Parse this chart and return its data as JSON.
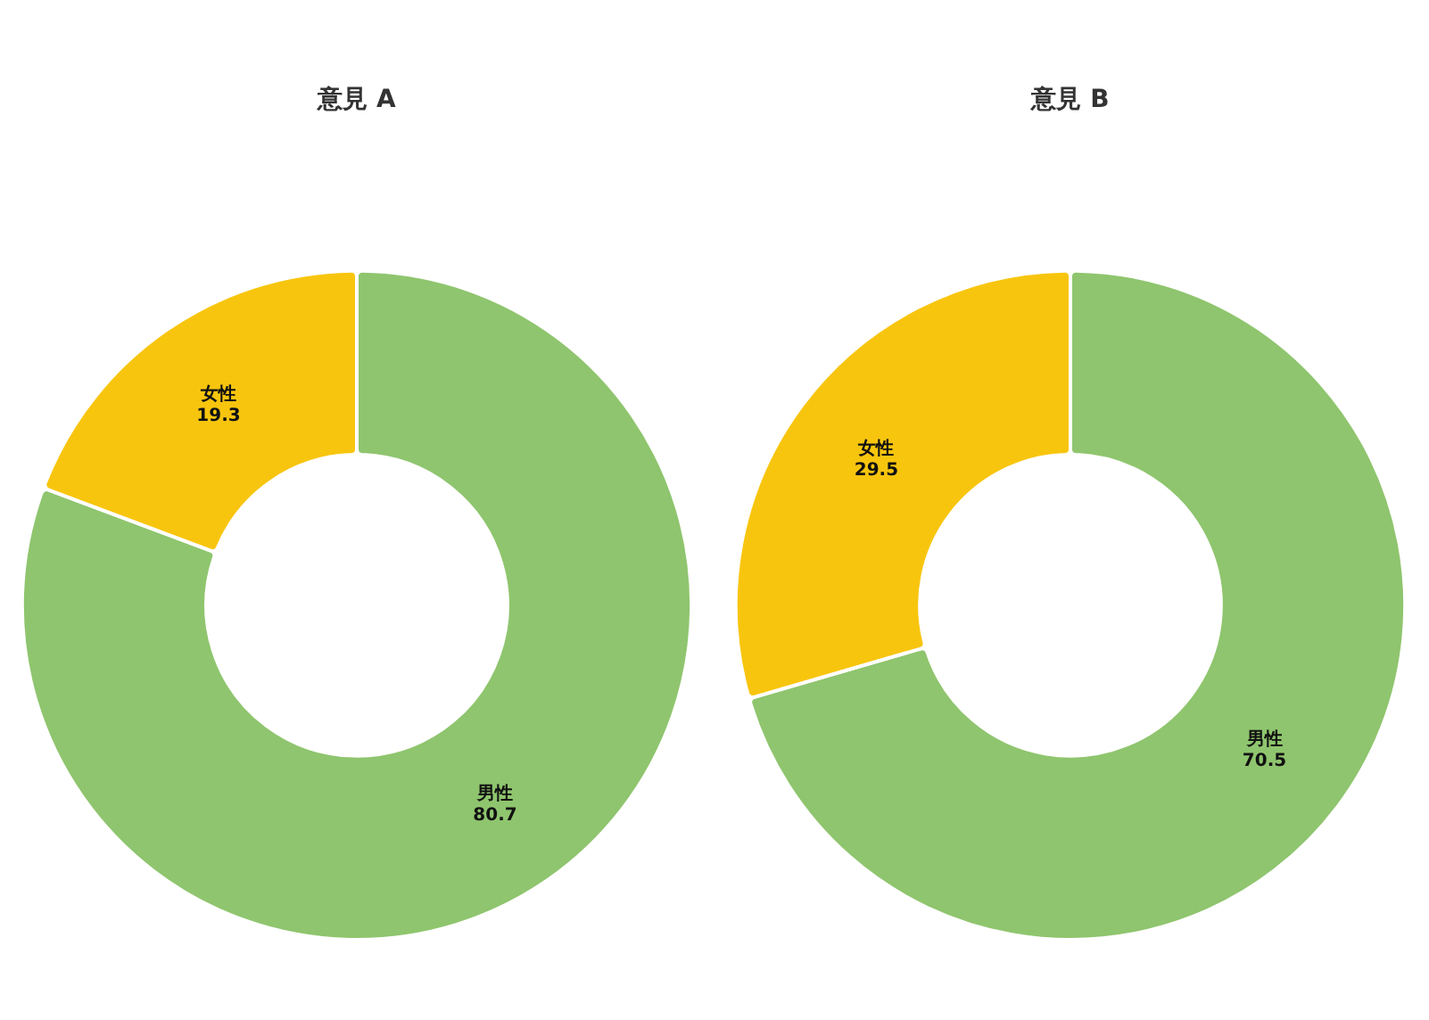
{
  "chart_data": [
    {
      "type": "donut",
      "title": "意見 A",
      "categories": [
        "男性",
        "女性"
      ],
      "values": [
        80.7,
        19.3
      ],
      "colors": [
        "#8fc56e",
        "#f8c50e"
      ],
      "data_labels": true
    },
    {
      "type": "donut",
      "title": "意見 B",
      "categories": [
        "男性",
        "女性"
      ],
      "values": [
        70.5,
        29.5
      ],
      "colors": [
        "#8fc56e",
        "#f8c50e"
      ],
      "data_labels": true
    }
  ]
}
